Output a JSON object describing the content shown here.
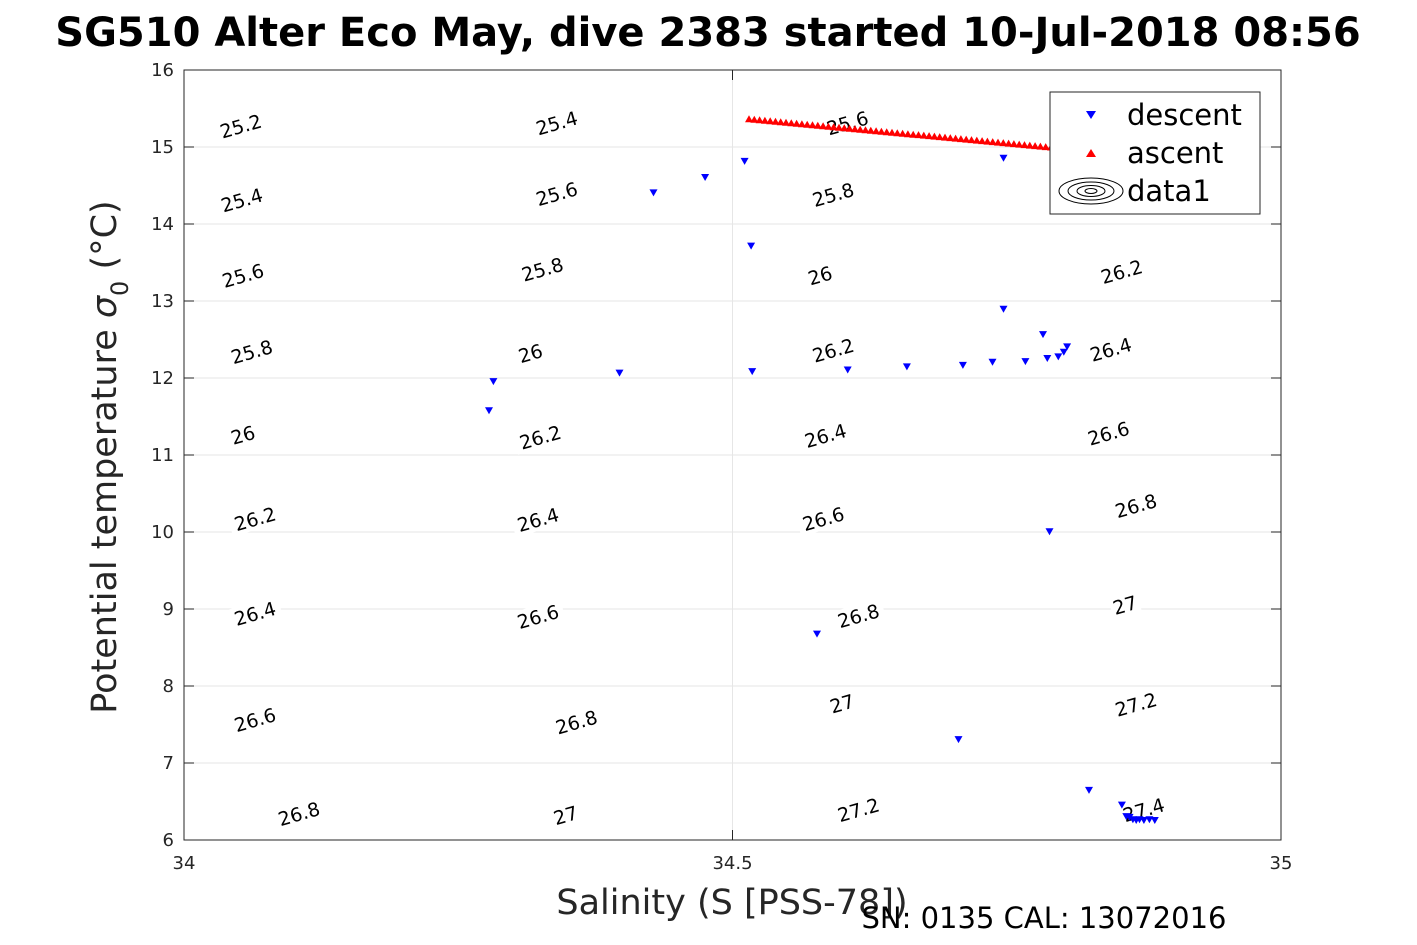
{
  "chart_data": {
    "type": "scatter",
    "title": "SG510 Alter Eco May, dive 2383 started 10-Jul-2018 08:56",
    "xlabel": "Salinity (S [PSS-78])",
    "ylabel_main": "Potential temperature ",
    "ylabel_symbol": "σ",
    "ylabel_sub": "0",
    "ylabel_unit": " (°C)",
    "footer": "SN: 0135  CAL: 13072016",
    "xlim": [
      34,
      35
    ],
    "ylim": [
      6,
      16
    ],
    "xticks": [
      34,
      34.5,
      35
    ],
    "yticks": [
      6,
      7,
      8,
      9,
      10,
      11,
      12,
      13,
      14,
      15,
      16
    ],
    "xtick_labels": [
      "34",
      "34.5",
      "35"
    ],
    "ytick_labels": [
      "6",
      "7",
      "8",
      "9",
      "10",
      "11",
      "12",
      "13",
      "14",
      "15",
      "16"
    ],
    "grid": true,
    "legend_position": "top-right",
    "colors": {
      "descent": "#0000ff",
      "ascent": "#ff0000",
      "contour": "#000000",
      "grid": "#e6e6e6"
    },
    "legend": [
      "descent",
      "ascent",
      "data1"
    ],
    "contours": {
      "levels": [
        25.2,
        25.4,
        25.6,
        25.8,
        26,
        26.2,
        26.4,
        26.6,
        26.8,
        27,
        27.2,
        27.4
      ],
      "labels": [
        {
          "text": "25.2",
          "x": 34.052,
          "y": 15.26
        },
        {
          "text": "25.4",
          "x": 34.053,
          "y": 14.3
        },
        {
          "text": "25.6",
          "x": 34.054,
          "y": 13.32
        },
        {
          "text": "25.8",
          "x": 34.062,
          "y": 12.33
        },
        {
          "text": "26",
          "x": 34.054,
          "y": 11.25
        },
        {
          "text": "26.2",
          "x": 34.065,
          "y": 10.16
        },
        {
          "text": "26.4",
          "x": 34.065,
          "y": 8.93
        },
        {
          "text": "26.6",
          "x": 34.065,
          "y": 7.55
        },
        {
          "text": "26.8",
          "x": 34.105,
          "y": 6.33
        },
        {
          "text": "25.4",
          "x": 34.34,
          "y": 15.3
        },
        {
          "text": "25.6",
          "x": 34.34,
          "y": 14.38
        },
        {
          "text": "25.8",
          "x": 34.327,
          "y": 13.4
        },
        {
          "text": "26",
          "x": 34.316,
          "y": 12.31
        },
        {
          "text": "26.2",
          "x": 34.325,
          "y": 11.22
        },
        {
          "text": "26.4",
          "x": 34.323,
          "y": 10.15
        },
        {
          "text": "26.6",
          "x": 34.323,
          "y": 8.89
        },
        {
          "text": "26.8",
          "x": 34.358,
          "y": 7.52
        },
        {
          "text": "27",
          "x": 34.348,
          "y": 6.31
        },
        {
          "text": "25.6",
          "x": 34.605,
          "y": 15.3
        },
        {
          "text": "25.8",
          "x": 34.592,
          "y": 14.37
        },
        {
          "text": "26",
          "x": 34.58,
          "y": 13.32
        },
        {
          "text": "26.2",
          "x": 34.592,
          "y": 12.35
        },
        {
          "text": "26.4",
          "x": 34.585,
          "y": 11.24
        },
        {
          "text": "26.6",
          "x": 34.583,
          "y": 10.16
        },
        {
          "text": "26.8",
          "x": 34.615,
          "y": 8.9
        },
        {
          "text": "27",
          "x": 34.6,
          "y": 7.76
        },
        {
          "text": "27.2",
          "x": 34.615,
          "y": 6.38
        },
        {
          "text": "26.2",
          "x": 34.855,
          "y": 13.37
        },
        {
          "text": "26.4",
          "x": 34.845,
          "y": 12.36
        },
        {
          "text": "26.6",
          "x": 34.843,
          "y": 11.27
        },
        {
          "text": "26.8",
          "x": 34.868,
          "y": 10.33
        },
        {
          "text": "27",
          "x": 34.858,
          "y": 9.04
        },
        {
          "text": "27.2",
          "x": 34.868,
          "y": 7.75
        },
        {
          "text": "27.4",
          "x": 34.875,
          "y": 6.38
        }
      ]
    },
    "series": [
      {
        "name": "descent",
        "marker": "triangle-down",
        "x": [
          34.278,
          34.282,
          34.397,
          34.428,
          34.475,
          34.511,
          34.517,
          34.518,
          34.577,
          34.605,
          34.659,
          34.706,
          34.71,
          34.737,
          34.747,
          34.747,
          34.767,
          34.783,
          34.787,
          34.789,
          34.795,
          34.797,
          34.802,
          34.805,
          34.825,
          34.855,
          34.859,
          34.862,
          34.865,
          34.868,
          34.871,
          34.875,
          34.88,
          34.885
        ],
        "y": [
          11.58,
          11.96,
          12.07,
          14.41,
          14.61,
          14.82,
          13.72,
          12.09,
          8.68,
          12.11,
          12.15,
          7.31,
          12.17,
          12.21,
          14.86,
          12.9,
          12.22,
          12.57,
          12.26,
          10.01,
          14.86,
          12.28,
          12.34,
          12.41,
          6.65,
          6.46,
          6.31,
          6.3,
          6.27,
          6.26,
          6.27,
          6.26,
          6.27,
          6.26
        ]
      },
      {
        "name": "ascent",
        "marker": "triangle-up",
        "x_range": [
          34.515,
          34.8
        ],
        "y_range": [
          15.36,
          14.98
        ],
        "count": 60
      }
    ]
  }
}
